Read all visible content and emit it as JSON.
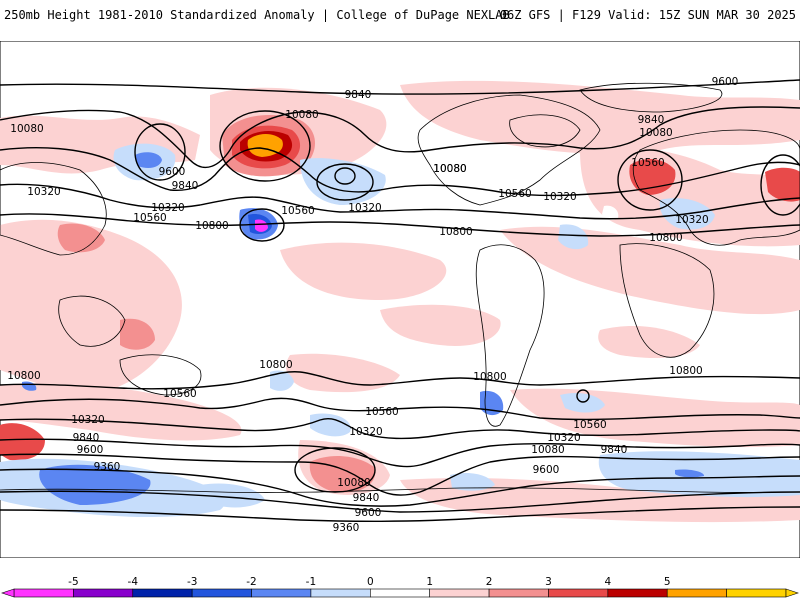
{
  "header": {
    "title": "250mb Height 1981-2010 Standardized Anomaly | College of DuPage NEXLAB",
    "run_info": "06Z GFS | F129 Valid: 15Z SUN MAR 30 2025"
  },
  "contour_labels": [
    "9840",
    "9600",
    "10080",
    "10080",
    "10080",
    "10320",
    "9600",
    "9840",
    "10320",
    "10560",
    "10800",
    "10560",
    "10320",
    "10080",
    "10560",
    "10320",
    "9840",
    "10080",
    "10560",
    "10320",
    "10800",
    "10800",
    "10800",
    "10560",
    "10800",
    "10800",
    "10560",
    "10320",
    "10320",
    "10800",
    "9840",
    "9600",
    "9360",
    "10560",
    "10320",
    "10080",
    "9840",
    "9600",
    "10080",
    "9840",
    "9600",
    "9360"
  ],
  "colorbar": {
    "ticks": [
      "-5",
      "-4",
      "-3",
      "-2",
      "-1",
      "0",
      "1",
      "2",
      "3",
      "4",
      "5"
    ],
    "colors": [
      "#ff33ff",
      "#8800cc",
      "#0022aa",
      "#2255dd",
      "#5b86f2",
      "#c6ddfb",
      "#ffffff",
      "#fcd2d2",
      "#f39090",
      "#e84a4a",
      "#bb0000",
      "#ffa200",
      "#ffd200"
    ]
  }
}
